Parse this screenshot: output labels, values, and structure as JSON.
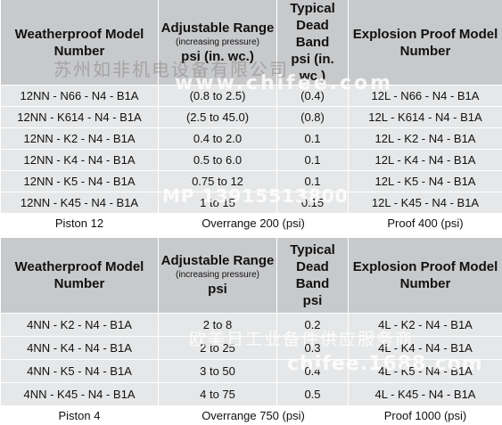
{
  "table1": {
    "headers": {
      "model": "Weatherproof Model Number",
      "range": "Adjustable Range",
      "range_sub": "(increasing pressure)",
      "range_unit": "psi (in. wc.)",
      "deadband": "Typical Dead Band",
      "deadband_unit": "psi (in. wc.)",
      "explosion": "Explosion Proof Model Number"
    },
    "rows": [
      [
        "12NN - N66 - N4 - B1A",
        "(0.8 to 2.5)",
        "(0.4)",
        "12L - N66 - N4 - B1A"
      ],
      [
        "12NN - K614 - N4 - B1A",
        "(2.5 to 45.0)",
        "(0.8)",
        "12L - K614 - N4 - B1A"
      ],
      [
        "12NN - K2 - N4 - B1A",
        "0.4 to 2.0",
        "0.1",
        "12L - K2 - N4 - B1A"
      ],
      [
        "12NN - K4 - N4 - B1A",
        "0.5 to 6.0",
        "0.1",
        "12L - K4 - N4 - B1A"
      ],
      [
        "12NN - K5 - N4 - B1A",
        "0.75 to 12",
        "0.1",
        "12L - K5 - N4 - B1A"
      ],
      [
        "12NN - K45 - N4 - B1A",
        "1 to 15",
        "0.15",
        "12L - K45 - N4 - B1A"
      ]
    ],
    "footer": [
      "Piston 12",
      "Overrange 200 (psi)",
      "Proof 400 (psi)"
    ]
  },
  "table2": {
    "headers": {
      "model": "Weatherproof Model Number",
      "range": "Adjustable Range",
      "range_sub": "(increasing pressure)",
      "range_unit": "psi",
      "deadband": "Typical Dead Band",
      "deadband_unit": "psi",
      "explosion": "Explosion Proof Model Number"
    },
    "rows": [
      [
        "4NN - K2 - N4 - B1A",
        "2 to 8",
        "0.2",
        "4L - K2 - N4 - B1A"
      ],
      [
        "4NN - K4 - N4 - B1A",
        "2 to 25",
        "0.3",
        "4L - K4 - N4 - B1A"
      ],
      [
        "4NN - K5 - N4 - B1A",
        "3 to 50",
        "0.4",
        "4L - K5 - N4 - B1A"
      ],
      [
        "4NN - K45 - N4 - B1A",
        "4 to 75",
        "0.5",
        "4L - K45 - N4 - B1A"
      ]
    ],
    "footer": [
      "Piston 4",
      "Overrange 750 (psi)",
      "Proof 1000 (psi)"
    ]
  },
  "watermarks": {
    "company": "苏州如非机电设备有限公司",
    "site": "www.chifee.com",
    "phone": "MP 13915513800",
    "service": "欧美日工业备件供应服务商",
    "site2": "chifee.1688.com"
  }
}
